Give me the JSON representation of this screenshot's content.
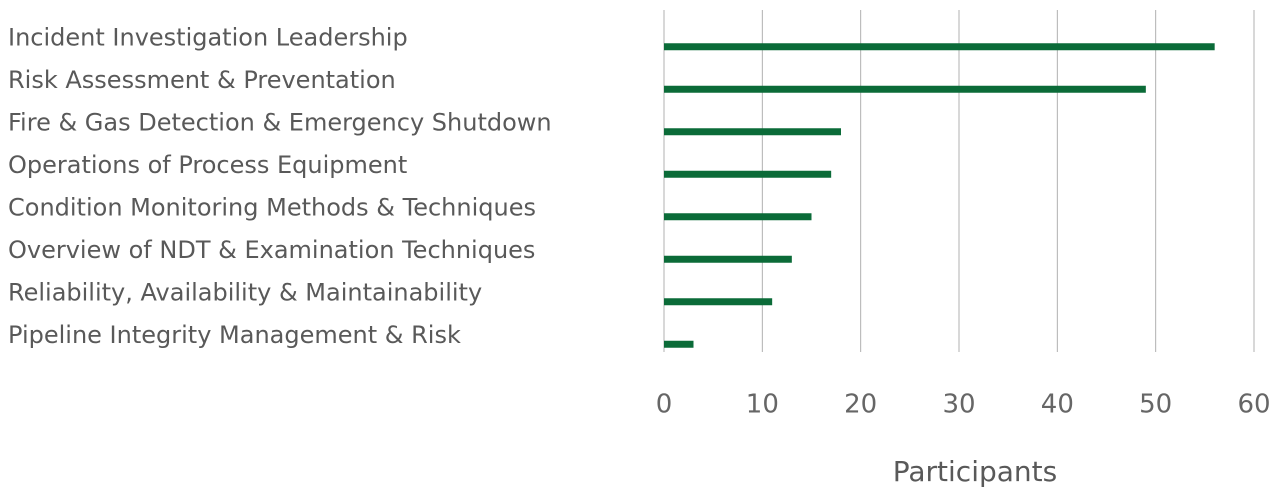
{
  "chart_data": {
    "type": "bar",
    "orientation": "horizontal",
    "categories": [
      "Incident Investigation Leadership",
      "Risk Assessment & Preventation",
      "Fire & Gas Detection & Emergency Shutdown",
      "Operations of Process Equipment",
      "Condition Monitoring Methods & Techniques",
      "Overview of NDT & Examination Techniques",
      "Reliability, Availability & Maintainability",
      "Pipeline Integrity Management & Risk"
    ],
    "values": [
      56,
      49,
      18,
      17,
      15,
      13,
      11,
      3
    ],
    "color": "#0b6b38",
    "x_label": "Participants",
    "xlim": [
      0,
      60
    ],
    "xticks": [
      0,
      10,
      20,
      30,
      40,
      50,
      60
    ],
    "grid": true
  }
}
